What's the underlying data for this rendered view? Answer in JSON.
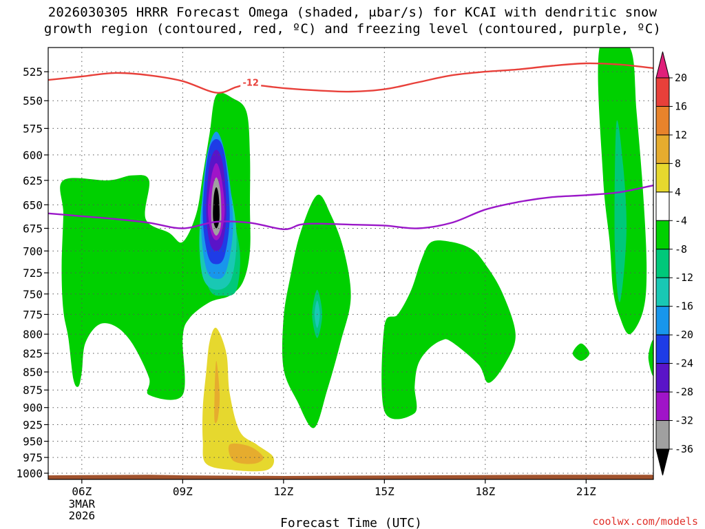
{
  "title": {
    "line1": "2026030305 HRRR Forecast Omega (shaded, μbar/s) for KCAI with dendritic snow",
    "line2": "growth region (contoured, red, ºC) and freezing level (contoured, purple, ºC)"
  },
  "credit": "coolwx.com/models",
  "colors": {
    "dgz_contour": "#e8403a",
    "freezing_contour": "#9a17c8",
    "ground": "#a0522d",
    "grid": "#555555"
  },
  "chart_data": {
    "type": "heatmap",
    "title": "2026030305 HRRR Forecast Omega (shaded, μbar/s) for KCAI with dendritic snow growth region (contoured, red, ºC) and freezing level (contoured, purple, ºC)",
    "xlabel": "Forecast Time (UTC)",
    "ylabel": "",
    "x_range_hours": [
      5,
      23
    ],
    "y_range_mb": [
      505,
      1010
    ],
    "y_axis_inverted_log": true,
    "x_ticks": [
      {
        "hour": 6,
        "label": "06Z",
        "date_line1": "3MAR",
        "date_line2": "2026"
      },
      {
        "hour": 9,
        "label": "09Z"
      },
      {
        "hour": 12,
        "label": "12Z"
      },
      {
        "hour": 15,
        "label": "15Z"
      },
      {
        "hour": 18,
        "label": "18Z"
      },
      {
        "hour": 21,
        "label": "21Z"
      }
    ],
    "y_ticks": [
      525,
      550,
      575,
      600,
      625,
      650,
      675,
      700,
      725,
      750,
      775,
      800,
      825,
      850,
      875,
      900,
      925,
      950,
      975,
      1000
    ],
    "grid": true,
    "colorbar": {
      "labels": [
        20,
        16,
        12,
        8,
        4,
        -4,
        -8,
        -12,
        -16,
        -20,
        -24,
        -28,
        -32,
        -36
      ],
      "levels": [
        {
          "range": [
            16,
            20
          ],
          "color": "#e8403a"
        },
        {
          "range": [
            12,
            16
          ],
          "color": "#e8832b"
        },
        {
          "range": [
            8,
            12
          ],
          "color": "#e6ac2e"
        },
        {
          "range": [
            4,
            8
          ],
          "color": "#e6d82e"
        },
        {
          "range": [
            -4,
            4
          ],
          "color": "#ffffff"
        },
        {
          "range": [
            -8,
            -4
          ],
          "color": "#00d000"
        },
        {
          "range": [
            -12,
            -8
          ],
          "color": "#00c87a"
        },
        {
          "range": [
            -16,
            -12
          ],
          "color": "#19c8b4"
        },
        {
          "range": [
            -20,
            -16
          ],
          "color": "#1896ec"
        },
        {
          "range": [
            -24,
            -20
          ],
          "color": "#1e3ce6"
        },
        {
          "range": [
            -28,
            -24
          ],
          "color": "#5a14c8"
        },
        {
          "range": [
            -32,
            -28
          ],
          "color": "#a014c8"
        },
        {
          "range": [
            -36,
            -32
          ],
          "color": "#a0a0a0"
        }
      ],
      "over_color": "#e0207a",
      "under_color": "#000000"
    },
    "contours": [
      {
        "name": "dendritic snow growth region (-12 ºC)",
        "label": "-12",
        "label_hour": 10.8,
        "label_mb": 534,
        "color": "#e8403a",
        "points": [
          [
            5,
            532
          ],
          [
            6,
            529
          ],
          [
            7,
            526
          ],
          [
            8,
            528
          ],
          [
            9,
            533
          ],
          [
            10,
            543
          ],
          [
            10.6,
            538
          ],
          [
            11,
            536
          ],
          [
            12,
            539
          ],
          [
            13,
            541
          ],
          [
            14,
            542
          ],
          [
            15,
            540
          ],
          [
            16,
            534
          ],
          [
            17,
            528
          ],
          [
            18,
            525
          ],
          [
            19,
            523
          ],
          [
            20,
            520
          ],
          [
            21,
            518
          ],
          [
            22,
            519
          ],
          [
            23,
            522
          ]
        ]
      },
      {
        "name": "freezing level (0 ºC)",
        "label": "",
        "color": "#9a17c8",
        "points": [
          [
            5,
            659
          ],
          [
            6,
            662
          ],
          [
            7,
            665
          ],
          [
            8,
            669
          ],
          [
            9,
            675
          ],
          [
            10,
            668
          ],
          [
            11,
            669
          ],
          [
            12,
            676
          ],
          [
            12.5,
            671
          ],
          [
            13,
            670
          ],
          [
            14,
            671
          ],
          [
            15,
            672
          ],
          [
            16,
            675
          ],
          [
            17,
            669
          ],
          [
            18,
            655
          ],
          [
            19,
            647
          ],
          [
            20,
            642
          ],
          [
            21,
            640
          ],
          [
            22,
            637
          ],
          [
            23,
            630
          ]
        ]
      }
    ],
    "omega_regions": [
      {
        "level": -6,
        "color": "#00d000",
        "points": [
          [
            5.45,
            625
          ],
          [
            6.8,
            625
          ],
          [
            7.5,
            620
          ],
          [
            8.0,
            625
          ],
          [
            7.9,
            665
          ],
          [
            8.6,
            680
          ],
          [
            9.0,
            690
          ],
          [
            9.4,
            660
          ],
          [
            9.6,
            620
          ],
          [
            9.8,
            580
          ],
          [
            10.0,
            545
          ],
          [
            10.5,
            548
          ],
          [
            10.9,
            560
          ],
          [
            11.0,
            600
          ],
          [
            11.0,
            650
          ],
          [
            11.0,
            700
          ],
          [
            10.8,
            735
          ],
          [
            10.4,
            752
          ],
          [
            9.8,
            760
          ],
          [
            9.2,
            780
          ],
          [
            9.0,
            805
          ],
          [
            9.0,
            882
          ],
          [
            8.0,
            882
          ],
          [
            8.0,
            858
          ],
          [
            7.5,
            812
          ],
          [
            7.0,
            790
          ],
          [
            6.5,
            788
          ],
          [
            6.1,
            812
          ],
          [
            6.0,
            850
          ],
          [
            5.9,
            870
          ],
          [
            5.75,
            860
          ],
          [
            5.6,
            805
          ],
          [
            5.45,
            770
          ],
          [
            5.4,
            720
          ],
          [
            5.45,
            660
          ]
        ]
      },
      {
        "level": -6,
        "color": "#00d000",
        "points": [
          [
            13.0,
            640
          ],
          [
            12.5,
            680
          ],
          [
            12.2,
            730
          ],
          [
            12.0,
            780
          ],
          [
            12.0,
            845
          ],
          [
            12.4,
            890
          ],
          [
            12.9,
            930
          ],
          [
            13.3,
            875
          ],
          [
            13.7,
            810
          ],
          [
            14.0,
            755
          ],
          [
            13.8,
            700
          ],
          [
            13.4,
            660
          ]
        ]
      },
      {
        "level": -6,
        "color": "#00d000",
        "points": [
          [
            15.0,
            790
          ],
          [
            15.4,
            775
          ],
          [
            15.8,
            745
          ],
          [
            16.1,
            710
          ],
          [
            16.4,
            690
          ],
          [
            17.0,
            690
          ],
          [
            17.6,
            698
          ],
          [
            18.0,
            715
          ],
          [
            18.5,
            748
          ],
          [
            18.9,
            800
          ],
          [
            18.6,
            838
          ],
          [
            18.1,
            865
          ],
          [
            17.8,
            840
          ],
          [
            17.0,
            810
          ],
          [
            16.7,
            808
          ],
          [
            16.3,
            820
          ],
          [
            16.0,
            840
          ],
          [
            15.9,
            870
          ],
          [
            15.9,
            908
          ],
          [
            15.0,
            905
          ]
        ]
      },
      {
        "level": -6,
        "color": "#00d000",
        "points": [
          [
            21.4,
            505
          ],
          [
            22.3,
            505
          ],
          [
            22.5,
            560
          ],
          [
            22.7,
            640
          ],
          [
            22.8,
            720
          ],
          [
            22.7,
            770
          ],
          [
            22.3,
            800
          ],
          [
            22.0,
            778
          ],
          [
            21.8,
            745
          ],
          [
            21.7,
            690
          ],
          [
            21.5,
            620
          ]
        ]
      },
      {
        "level": -6,
        "color": "#00d000",
        "points": [
          [
            20.6,
            825
          ],
          [
            20.85,
            812
          ],
          [
            21.1,
            825
          ],
          [
            20.85,
            835
          ]
        ]
      },
      {
        "level": -6,
        "color": "#00d000",
        "points": [
          [
            23.0,
            808
          ],
          [
            22.85,
            830
          ],
          [
            23.0,
            855
          ]
        ]
      },
      {
        "level": -10,
        "color": "#00c87a",
        "points": [
          [
            9.6,
            655
          ],
          [
            10.0,
            630
          ],
          [
            10.4,
            655
          ],
          [
            10.7,
            700
          ],
          [
            10.6,
            745
          ],
          [
            10.2,
            752
          ],
          [
            9.8,
            745
          ],
          [
            9.5,
            700
          ]
        ]
      },
      {
        "level": -10,
        "color": "#00c87a",
        "points": [
          [
            13.0,
            745
          ],
          [
            13.15,
            775
          ],
          [
            13.0,
            805
          ],
          [
            12.85,
            775
          ]
        ]
      },
      {
        "level": -10,
        "color": "#00c87a",
        "points": [
          [
            21.9,
            570
          ],
          [
            22.1,
            610
          ],
          [
            22.2,
            680
          ],
          [
            22.0,
            760
          ],
          [
            21.85,
            690
          ]
        ]
      },
      {
        "level": -14,
        "color": "#19c8b4",
        "points": [
          [
            9.65,
            630
          ],
          [
            10.0,
            600
          ],
          [
            10.35,
            625
          ],
          [
            10.6,
            680
          ],
          [
            10.45,
            732
          ],
          [
            10.0,
            745
          ],
          [
            9.6,
            730
          ],
          [
            9.5,
            680
          ]
        ]
      },
      {
        "level": -14,
        "color": "#19c8b4",
        "points": [
          [
            13.0,
            758
          ],
          [
            13.08,
            775
          ],
          [
            13.0,
            792
          ],
          [
            12.92,
            775
          ]
        ]
      },
      {
        "level": -18,
        "color": "#1896ec",
        "points": [
          [
            9.7,
            605
          ],
          [
            10.0,
            578
          ],
          [
            10.3,
            605
          ],
          [
            10.5,
            670
          ],
          [
            10.3,
            722
          ],
          [
            10.0,
            732
          ],
          [
            9.7,
            720
          ],
          [
            9.55,
            670
          ]
        ]
      },
      {
        "level": -22,
        "color": "#1e3ce6",
        "points": [
          [
            9.75,
            600
          ],
          [
            10.0,
            585
          ],
          [
            10.25,
            600
          ],
          [
            10.4,
            660
          ],
          [
            10.25,
            705
          ],
          [
            10.0,
            715
          ],
          [
            9.75,
            705
          ],
          [
            9.6,
            660
          ]
        ]
      },
      {
        "level": -26,
        "color": "#5a14c8",
        "points": [
          [
            9.8,
            610
          ],
          [
            10.0,
            595
          ],
          [
            10.2,
            610
          ],
          [
            10.3,
            655
          ],
          [
            10.2,
            690
          ],
          [
            10.0,
            700
          ],
          [
            9.8,
            690
          ],
          [
            9.7,
            655
          ]
        ]
      },
      {
        "level": -30,
        "color": "#a014c8",
        "points": [
          [
            9.85,
            622
          ],
          [
            10.0,
            608
          ],
          [
            10.15,
            622
          ],
          [
            10.25,
            655
          ],
          [
            10.15,
            680
          ],
          [
            10.0,
            688
          ],
          [
            9.85,
            680
          ],
          [
            9.75,
            655
          ]
        ]
      },
      {
        "level": -34,
        "color": "#a0a0a0",
        "points": [
          [
            9.88,
            635
          ],
          [
            10.0,
            622
          ],
          [
            10.12,
            635
          ],
          [
            10.15,
            660
          ],
          [
            10.12,
            675
          ],
          [
            10.0,
            683
          ],
          [
            9.88,
            675
          ],
          [
            9.85,
            660
          ]
        ]
      },
      {
        "level": -38,
        "color": "#000000",
        "points": [
          [
            9.93,
            640
          ],
          [
            10.0,
            632
          ],
          [
            10.07,
            640
          ],
          [
            10.1,
            660
          ],
          [
            10.07,
            670
          ],
          [
            10.0,
            675
          ],
          [
            9.93,
            670
          ],
          [
            9.9,
            660
          ]
        ]
      },
      {
        "level": 6,
        "color": "#e6d82e",
        "points": [
          [
            10.0,
            792
          ],
          [
            10.3,
            825
          ],
          [
            10.4,
            880
          ],
          [
            10.7,
            935
          ],
          [
            11.2,
            955
          ],
          [
            11.7,
            975
          ],
          [
            11.5,
            995
          ],
          [
            10.5,
            995
          ],
          [
            9.7,
            985
          ],
          [
            9.6,
            950
          ],
          [
            9.6,
            900
          ],
          [
            9.7,
            850
          ],
          [
            9.8,
            810
          ]
        ]
      },
      {
        "level": 10,
        "color": "#e6ac2e",
        "points": [
          [
            10.0,
            835
          ],
          [
            10.1,
            880
          ],
          [
            10.05,
            915
          ],
          [
            9.95,
            920
          ],
          [
            9.95,
            880
          ]
        ]
      },
      {
        "level": 10,
        "color": "#e6ac2e",
        "points": [
          [
            10.4,
            955
          ],
          [
            11.0,
            958
          ],
          [
            11.4,
            975
          ],
          [
            11.1,
            985
          ],
          [
            10.5,
            980
          ]
        ]
      }
    ],
    "terrain": {
      "color": "#a0522d",
      "points": [
        [
          5,
          1004
        ],
        [
          8,
          1003
        ],
        [
          9,
          1004
        ],
        [
          12,
          1005
        ],
        [
          16,
          1004
        ],
        [
          20,
          1003
        ],
        [
          23,
          1003
        ]
      ],
      "bottom_mb": 1010
    }
  },
  "axis_label": "Forecast Time (UTC)"
}
